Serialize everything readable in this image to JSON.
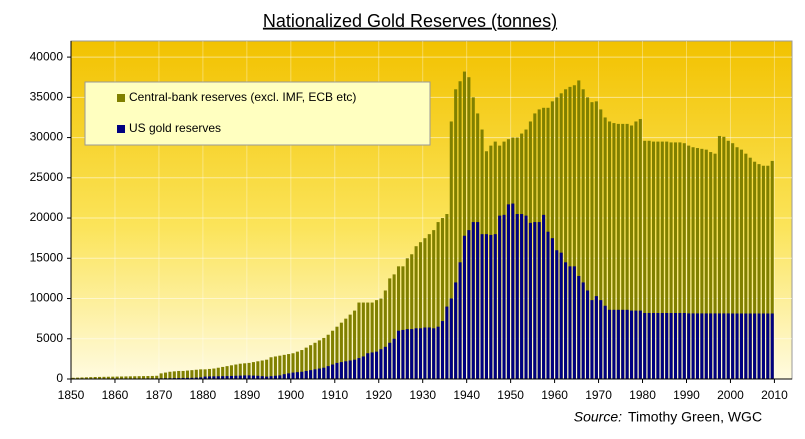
{
  "chart_data": {
    "type": "bar",
    "title": "Nationalized Gold Reserves (tonnes)",
    "source_label": "Source:",
    "source": "Timothy Green, WGC",
    "x": [
      1850,
      1851,
      1852,
      1853,
      1854,
      1855,
      1856,
      1857,
      1858,
      1859,
      1860,
      1861,
      1862,
      1863,
      1864,
      1865,
      1866,
      1867,
      1868,
      1869,
      1870,
      1871,
      1872,
      1873,
      1874,
      1875,
      1876,
      1877,
      1878,
      1879,
      1880,
      1881,
      1882,
      1883,
      1884,
      1885,
      1886,
      1887,
      1888,
      1889,
      1890,
      1891,
      1892,
      1893,
      1894,
      1895,
      1896,
      1897,
      1898,
      1899,
      1900,
      1901,
      1902,
      1903,
      1904,
      1905,
      1906,
      1907,
      1908,
      1909,
      1910,
      1911,
      1912,
      1913,
      1914,
      1915,
      1916,
      1917,
      1918,
      1919,
      1920,
      1921,
      1922,
      1923,
      1924,
      1925,
      1926,
      1927,
      1928,
      1929,
      1930,
      1931,
      1932,
      1933,
      1934,
      1935,
      1936,
      1937,
      1938,
      1939,
      1940,
      1941,
      1942,
      1943,
      1944,
      1945,
      1946,
      1947,
      1948,
      1949,
      1950,
      1951,
      1952,
      1953,
      1954,
      1955,
      1956,
      1957,
      1958,
      1959,
      1960,
      1961,
      1962,
      1963,
      1964,
      1965,
      1966,
      1967,
      1968,
      1969,
      1970,
      1971,
      1972,
      1973,
      1974,
      1975,
      1976,
      1977,
      1978,
      1979,
      1980,
      1981,
      1982,
      1983,
      1984,
      1985,
      1986,
      1987,
      1988,
      1989,
      1990,
      1991,
      1992,
      1993,
      1994,
      1995,
      1996,
      1997,
      1998,
      1999,
      2000,
      2001,
      2002,
      2003,
      2004,
      2005,
      2006,
      2007,
      2008,
      2009
    ],
    "series": [
      {
        "name": "Central-bank reserves (excl. IMF, ECB etc)",
        "color": "#808000",
        "values": [
          150,
          170,
          190,
          210,
          230,
          250,
          260,
          270,
          280,
          290,
          300,
          310,
          320,
          330,
          340,
          350,
          360,
          370,
          380,
          400,
          700,
          800,
          900,
          950,
          1000,
          1000,
          1050,
          1100,
          1150,
          1200,
          1200,
          1250,
          1300,
          1400,
          1500,
          1600,
          1700,
          1800,
          1900,
          1950,
          2000,
          2100,
          2200,
          2300,
          2400,
          2700,
          2800,
          2900,
          3000,
          3100,
          3200,
          3400,
          3600,
          3900,
          4200,
          4500,
          4800,
          5100,
          5500,
          6000,
          6500,
          7000,
          7500,
          8000,
          8500,
          9500,
          9500,
          9500,
          9500,
          9800,
          10000,
          11000,
          12500,
          13000,
          14000,
          14000,
          15000,
          15500,
          16500,
          17000,
          17500,
          18000,
          18500,
          19500,
          20000,
          20500,
          32000,
          36000,
          37000,
          38200,
          37500,
          35000,
          33000,
          31000,
          28300,
          29000,
          29500,
          29000,
          29500,
          29800,
          30000,
          30000,
          30500,
          31000,
          32000,
          33000,
          33500,
          33700,
          33700,
          34500,
          35000,
          35500,
          36000,
          36300,
          36500,
          37100,
          36000,
          35000,
          34400,
          34500,
          33500,
          32500,
          32000,
          31800,
          31700,
          31700,
          31700,
          31500,
          32000,
          32300,
          29600,
          29600,
          29500,
          29500,
          29500,
          29500,
          29400,
          29400,
          29400,
          29300,
          29000,
          28800,
          28700,
          28600,
          28500,
          28200,
          28000,
          30200,
          30100,
          29600,
          29300,
          28800,
          28500,
          28000,
          27500,
          27000,
          26700,
          26500,
          26500,
          27100
        ]
      },
      {
        "name": "US gold reserves",
        "color": "#000080",
        "values": [
          20,
          20,
          30,
          30,
          40,
          40,
          50,
          50,
          60,
          60,
          60,
          60,
          60,
          60,
          60,
          60,
          60,
          70,
          70,
          70,
          80,
          90,
          100,
          110,
          120,
          130,
          140,
          150,
          170,
          200,
          300,
          320,
          330,
          340,
          350,
          360,
          380,
          400,
          420,
          440,
          450,
          420,
          400,
          350,
          300,
          350,
          400,
          450,
          600,
          700,
          800,
          850,
          900,
          1000,
          1100,
          1200,
          1300,
          1400,
          1600,
          1800,
          2000,
          2100,
          2200,
          2300,
          2400,
          2600,
          2800,
          3200,
          3300,
          3400,
          3700,
          4000,
          4500,
          5000,
          6000,
          6100,
          6200,
          6200,
          6300,
          6300,
          6400,
          6400,
          6300,
          6500,
          7200,
          9000,
          10000,
          12000,
          14500,
          17800,
          18500,
          19500,
          19500,
          18000,
          18000,
          17900,
          18000,
          20300,
          20400,
          21700,
          21800,
          20500,
          20500,
          20300,
          19400,
          19500,
          19500,
          20400,
          18300,
          17500,
          16000,
          15700,
          14500,
          14000,
          14000,
          12800,
          12000,
          11000,
          9800,
          10300,
          9800,
          9100,
          8600,
          8600,
          8600,
          8600,
          8600,
          8500,
          8500,
          8500,
          8200,
          8200,
          8200,
          8200,
          8200,
          8200,
          8200,
          8200,
          8200,
          8200,
          8150,
          8150,
          8150,
          8150,
          8150,
          8150,
          8150,
          8150,
          8150,
          8150,
          8140,
          8140,
          8140,
          8140,
          8140,
          8140,
          8140,
          8140,
          8140,
          8140
        ]
      }
    ],
    "xlim": [
      1850,
      2014
    ],
    "xticks": [
      1850,
      1860,
      1870,
      1880,
      1890,
      1900,
      1910,
      1920,
      1930,
      1940,
      1950,
      1960,
      1970,
      1980,
      1990,
      2000,
      2010
    ],
    "ylim": [
      0,
      42000
    ],
    "yticks": [
      0,
      5000,
      10000,
      15000,
      20000,
      25000,
      30000,
      35000,
      40000
    ],
    "grid": true,
    "legend": "upper left"
  }
}
